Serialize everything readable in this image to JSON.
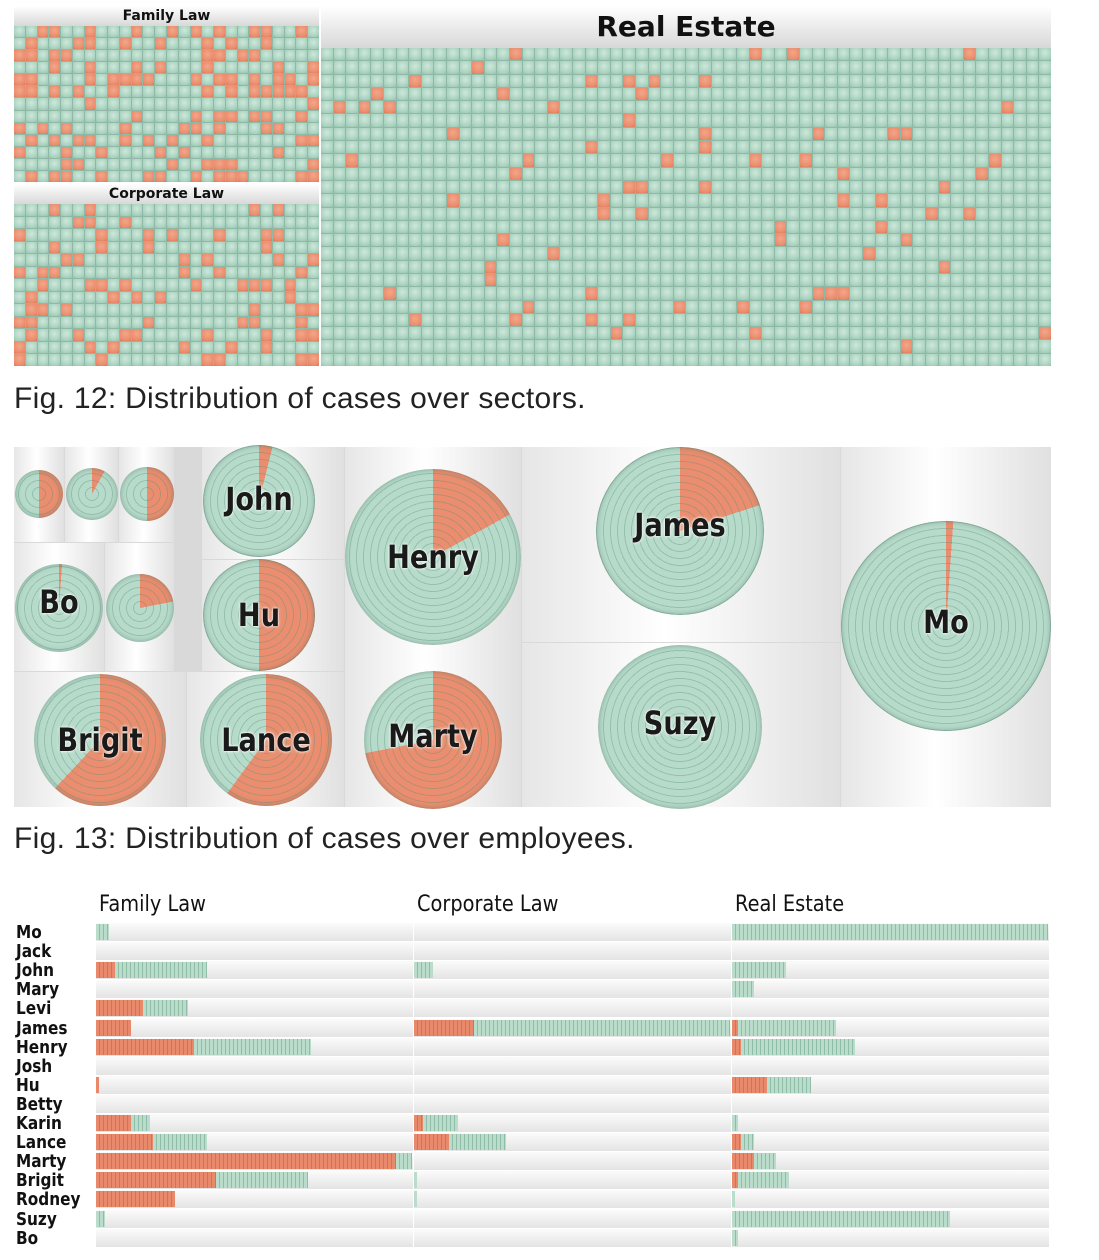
{
  "fig12": {
    "caption": "Fig. 12: Distribution of cases over sectors.",
    "panels": {
      "family": "Family Law",
      "corporate": "Corporate Law",
      "real_estate": "Real Estate"
    }
  },
  "fig13": {
    "caption": "Fig. 13: Distribution of cases over employees.",
    "employees": [
      {
        "name": "John",
        "share_orange": 0.04
      },
      {
        "name": "Henry",
        "share_orange": 0.17
      },
      {
        "name": "James",
        "share_orange": 0.2
      },
      {
        "name": "Mo",
        "share_orange": 0.01
      },
      {
        "name": "Bo",
        "share_orange": 0.01
      },
      {
        "name": "Hu",
        "share_orange": 0.5
      },
      {
        "name": "Suzy",
        "share_orange": 0.0
      },
      {
        "name": "Brigit",
        "share_orange": 0.62
      },
      {
        "name": "Lance",
        "share_orange": 0.6
      },
      {
        "name": "Marty",
        "share_orange": 0.72
      }
    ]
  },
  "fig14": {
    "columns": [
      "Family Law",
      "Corporate Law",
      "Real Estate"
    ],
    "rows": [
      {
        "name": "Mo",
        "bars": [
          [
            0.0,
            0.04
          ],
          [
            0,
            0
          ],
          [
            0.0,
            1.0
          ]
        ]
      },
      {
        "name": "Jack",
        "bars": [
          [
            0,
            0
          ],
          [
            0,
            0
          ],
          [
            0,
            0
          ]
        ]
      },
      {
        "name": "John",
        "bars": [
          [
            0.06,
            0.35
          ],
          [
            0.0,
            0.06
          ],
          [
            0.0,
            0.17
          ]
        ]
      },
      {
        "name": "Mary",
        "bars": [
          [
            0,
            0
          ],
          [
            0,
            0
          ],
          [
            0.0,
            0.07
          ]
        ]
      },
      {
        "name": "Levi",
        "bars": [
          [
            0.15,
            0.29
          ],
          [
            0,
            0
          ],
          [
            0,
            0
          ]
        ]
      },
      {
        "name": "James",
        "bars": [
          [
            0.11,
            0.11
          ],
          [
            0.19,
            1.0
          ],
          [
            0.02,
            0.33
          ]
        ]
      },
      {
        "name": "Henry",
        "bars": [
          [
            0.31,
            0.68
          ],
          [
            0,
            0
          ],
          [
            0.03,
            0.39
          ]
        ]
      },
      {
        "name": "Josh",
        "bars": [
          [
            0,
            0
          ],
          [
            0,
            0
          ],
          [
            0,
            0
          ]
        ]
      },
      {
        "name": "Hu",
        "bars": [
          [
            0.01,
            0.01
          ],
          [
            0,
            0
          ],
          [
            0.11,
            0.25
          ]
        ]
      },
      {
        "name": "Betty",
        "bars": [
          [
            0,
            0
          ],
          [
            0,
            0
          ],
          [
            0,
            0
          ]
        ]
      },
      {
        "name": "Karin",
        "bars": [
          [
            0.11,
            0.17
          ],
          [
            0.03,
            0.14
          ],
          [
            0.0,
            0.02
          ]
        ]
      },
      {
        "name": "Lance",
        "bars": [
          [
            0.18,
            0.35
          ],
          [
            0.11,
            0.29
          ],
          [
            0.03,
            0.07
          ]
        ]
      },
      {
        "name": "Marty",
        "bars": [
          [
            0.95,
            1.0
          ],
          [
            0.0,
            0.0
          ],
          [
            0.07,
            0.14
          ]
        ]
      },
      {
        "name": "Brigit",
        "bars": [
          [
            0.38,
            0.67
          ],
          [
            0.0,
            0.01
          ],
          [
            0.02,
            0.18
          ]
        ]
      },
      {
        "name": "Rodney",
        "bars": [
          [
            0.25,
            0.25
          ],
          [
            0.0,
            0.01
          ],
          [
            0.0,
            0.01
          ]
        ]
      },
      {
        "name": "Suzy",
        "bars": [
          [
            0.0,
            0.03
          ],
          [
            0,
            0
          ],
          [
            0.0,
            0.69
          ]
        ]
      },
      {
        "name": "Bo",
        "bars": [
          [
            0,
            0
          ],
          [
            0,
            0
          ],
          [
            0.0,
            0.02
          ]
        ]
      }
    ]
  }
}
